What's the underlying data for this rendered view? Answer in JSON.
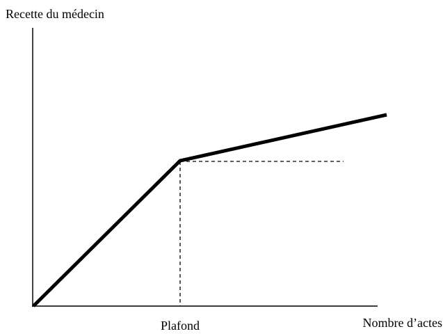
{
  "y_axis_label": "Recette du médecin",
  "x_axis_label": "Nombre d’actes",
  "threshold_label": "Plafond"
}
